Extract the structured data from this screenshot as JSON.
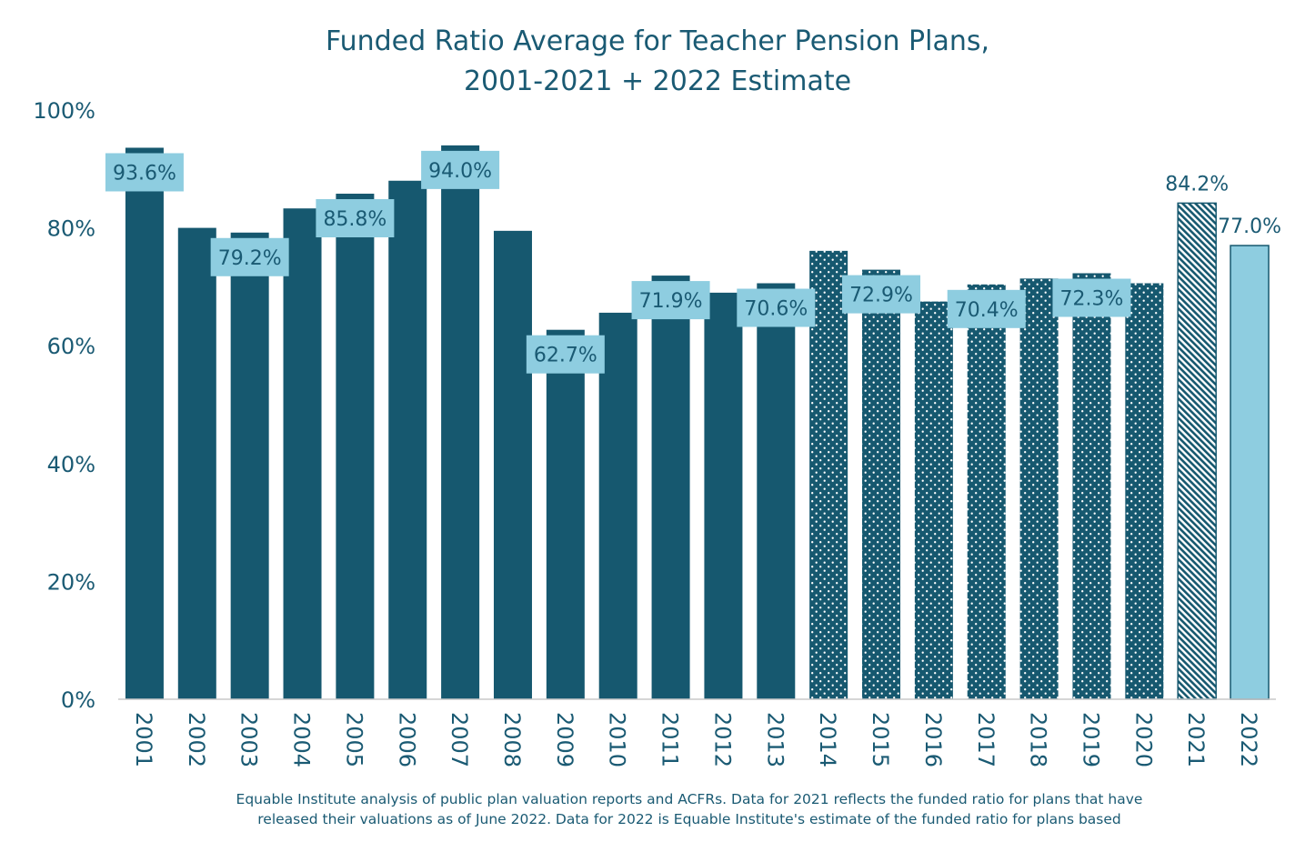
{
  "chart_data": {
    "type": "bar",
    "title": "Funded Ratio Average for Teacher Pension Plans,",
    "subtitle": "2001-2021 + 2022 Estimate",
    "xlabel": "",
    "ylabel": "",
    "ylim": [
      0,
      100
    ],
    "y_ticks": [
      "0%",
      "20%",
      "40%",
      "60%",
      "80%",
      "100%"
    ],
    "y_tick_values": [
      0,
      20,
      40,
      60,
      80,
      100
    ],
    "grid": false,
    "legend": "none",
    "categories": [
      "2001",
      "2002",
      "2003",
      "2004",
      "2005",
      "2006",
      "2007",
      "2008",
      "2009",
      "2010",
      "2011",
      "2012",
      "2013",
      "2014",
      "2015",
      "2016",
      "2017",
      "2018",
      "2019",
      "2020",
      "2021",
      "2022"
    ],
    "values": [
      93.6,
      80.0,
      79.2,
      83.3,
      85.8,
      88.0,
      94.0,
      79.5,
      62.7,
      65.6,
      71.9,
      69.0,
      70.6,
      76.1,
      72.9,
      67.5,
      70.4,
      71.4,
      72.3,
      70.6,
      84.2,
      77.0
    ],
    "data_labels": [
      "93.6%",
      "",
      "79.2%",
      "",
      "85.8%",
      "",
      "94.0%",
      "",
      "62.7%",
      "",
      "71.9%",
      "",
      "70.6%",
      "",
      "72.9%",
      "",
      "70.4%",
      "",
      "72.3%",
      "",
      "84.2%",
      "77.0%"
    ],
    "bar_styles": [
      "solid",
      "solid",
      "solid",
      "solid",
      "solid",
      "solid",
      "solid",
      "solid",
      "solid",
      "solid",
      "solid",
      "solid",
      "solid",
      "dotted",
      "dotted",
      "dotted",
      "dotted",
      "dotted",
      "dotted",
      "dotted",
      "hatched",
      "estimate"
    ],
    "colors": {
      "bar": "#16586f",
      "label_box": "#8ecde0",
      "estimate": "#8ecde0",
      "text": "#1a5a73",
      "axis": "#c8c8c8"
    }
  },
  "note": {
    "line1": "Equable Institute analysis of public plan valuation reports and ACFRs. Data for 2021 reflects the funded ratio for plans that have",
    "line2": "released their valuations as of June 2022. Data for 2022 is Equable Institute's estimate of the funded ratio for plans based"
  }
}
